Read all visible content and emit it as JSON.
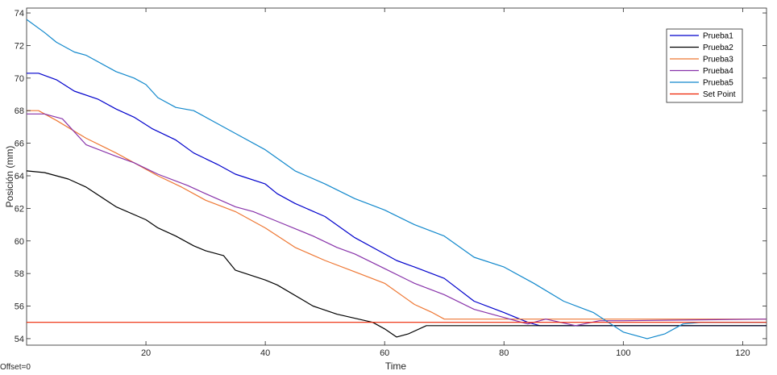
{
  "footnote": "Offset=0",
  "chart_data": {
    "type": "line",
    "title": "",
    "xlabel": "Time",
    "ylabel": "Posición (mm)",
    "xlim": [
      0,
      124
    ],
    "ylim": [
      53.6,
      74.3
    ],
    "xticks": [
      20,
      40,
      60,
      80,
      100,
      120
    ],
    "yticks": [
      54,
      56,
      58,
      60,
      62,
      64,
      66,
      68,
      70,
      72,
      74
    ],
    "grid": false,
    "legend_position": "top-right",
    "series": [
      {
        "name": "Prueba1",
        "color": "#0000cc",
        "x": [
          0,
          2,
          5,
          8,
          12,
          15,
          18,
          21,
          25,
          28,
          32,
          35,
          40,
          42,
          45,
          50,
          55,
          60,
          62,
          65,
          70,
          75,
          80,
          84,
          86,
          124
        ],
        "y": [
          70.3,
          70.3,
          69.9,
          69.2,
          68.7,
          68.1,
          67.6,
          66.9,
          66.2,
          65.4,
          64.7,
          64.1,
          63.5,
          62.9,
          62.3,
          61.5,
          60.2,
          59.2,
          58.8,
          58.4,
          57.7,
          56.3,
          55.6,
          55.0,
          54.8,
          54.8
        ]
      },
      {
        "name": "Prueba2",
        "color": "#000000",
        "x": [
          0,
          3,
          7,
          10,
          15,
          20,
          22,
          25,
          28,
          30,
          33,
          35,
          40,
          42,
          48,
          52,
          58,
          60,
          62,
          64,
          67,
          124
        ],
        "y": [
          64.3,
          64.2,
          63.8,
          63.3,
          62.1,
          61.3,
          60.8,
          60.3,
          59.7,
          59.4,
          59.1,
          58.2,
          57.6,
          57.3,
          56.0,
          55.5,
          55.0,
          54.6,
          54.1,
          54.3,
          54.8,
          54.8
        ]
      },
      {
        "name": "Prueba3",
        "color": "#ee7733",
        "x": [
          0,
          2,
          5,
          10,
          15,
          18,
          22,
          26,
          30,
          35,
          40,
          45,
          50,
          55,
          60,
          65,
          68,
          70,
          124
        ],
        "y": [
          68.0,
          68.0,
          67.4,
          66.3,
          65.4,
          64.8,
          64.0,
          63.3,
          62.5,
          61.8,
          60.8,
          59.6,
          58.8,
          58.1,
          57.4,
          56.1,
          55.6,
          55.2,
          55.2
        ]
      },
      {
        "name": "Prueba4",
        "color": "#8833aa",
        "x": [
          0,
          3,
          6,
          10,
          15,
          18,
          22,
          27,
          30,
          35,
          38,
          42,
          48,
          52,
          55,
          60,
          65,
          70,
          75,
          80,
          84,
          87,
          92,
          96,
          100,
          124
        ],
        "y": [
          67.8,
          67.8,
          67.5,
          65.9,
          65.2,
          64.8,
          64.1,
          63.4,
          62.9,
          62.1,
          61.8,
          61.2,
          60.3,
          59.6,
          59.2,
          58.3,
          57.4,
          56.7,
          55.8,
          55.3,
          54.9,
          55.2,
          54.8,
          55.1,
          55.1,
          55.2
        ]
      },
      {
        "name": "Prueba5",
        "color": "#1188cc",
        "x": [
          0,
          3,
          5,
          8,
          10,
          15,
          18,
          20,
          22,
          25,
          28,
          32,
          35,
          40,
          45,
          50,
          55,
          60,
          65,
          70,
          75,
          80,
          85,
          90,
          95,
          100,
          104,
          107,
          110,
          113,
          124
        ],
        "y": [
          73.6,
          72.8,
          72.2,
          71.6,
          71.4,
          70.4,
          70.0,
          69.6,
          68.8,
          68.2,
          68.0,
          67.2,
          66.6,
          65.6,
          64.3,
          63.5,
          62.6,
          61.9,
          61.0,
          60.3,
          59.0,
          58.4,
          57.4,
          56.3,
          55.6,
          54.4,
          54.0,
          54.3,
          54.9,
          55.0,
          55.0
        ]
      },
      {
        "name": "Set Point",
        "color": "#ee2200",
        "x": [
          0,
          124
        ],
        "y": [
          55.0,
          55.0
        ]
      }
    ]
  }
}
